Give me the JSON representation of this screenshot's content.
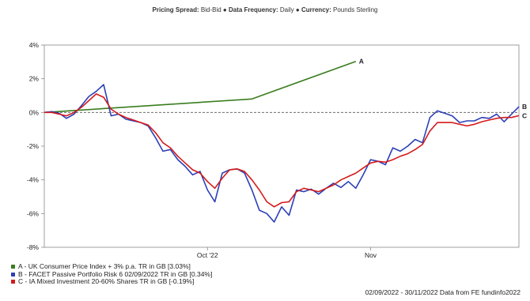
{
  "header": {
    "items": [
      {
        "label": "Pricing Spread:",
        "value": "Bid-Bid"
      },
      {
        "label": "Data Frequency:",
        "value": "Daily"
      },
      {
        "label": "Currency:",
        "value": "Pounds Sterling"
      }
    ]
  },
  "footer": "02/09/2022 - 30/11/2022 Data from FE fundinfo2022",
  "chart_data": {
    "type": "line",
    "ylim": [
      -8,
      4
    ],
    "yticks": [
      "4%",
      "2%",
      "0%",
      "-2%",
      "-4%",
      "-6%",
      "-8%"
    ],
    "xticks": [
      "Oct '22",
      "Nov"
    ],
    "reference_line": 0,
    "series": [
      {
        "key": "A",
        "name": "A - UK Consumer Price Index + 3% p.a. TR in GB [3.03%]",
        "color": "#3a7d1e",
        "points": [
          [
            0,
            0
          ],
          [
            28,
            0.8
          ],
          [
            42,
            3.03
          ]
        ]
      },
      {
        "key": "B",
        "name": "B - FACET Passive Portfolio Risk 6 02/09/2022 TR in GB [0.34%]",
        "color": "#2b3fb7",
        "points": [
          [
            0,
            0
          ],
          [
            1,
            0.05
          ],
          [
            2,
            -0.05
          ],
          [
            3,
            -0.35
          ],
          [
            4,
            -0.1
          ],
          [
            5,
            0.4
          ],
          [
            6,
            0.95
          ],
          [
            7,
            1.25
          ],
          [
            8,
            1.65
          ],
          [
            9,
            -0.2
          ],
          [
            10,
            -0.1
          ],
          [
            11,
            -0.4
          ],
          [
            12,
            -0.5
          ],
          [
            13,
            -0.6
          ],
          [
            14,
            -0.8
          ],
          [
            15,
            -1.5
          ],
          [
            16,
            -2.3
          ],
          [
            17,
            -2.2
          ],
          [
            18,
            -2.8
          ],
          [
            19,
            -3.2
          ],
          [
            20,
            -3.7
          ],
          [
            21,
            -3.5
          ],
          [
            22,
            -4.6
          ],
          [
            23,
            -5.3
          ],
          [
            24,
            -3.6
          ],
          [
            25,
            -3.4
          ],
          [
            26,
            -3.35
          ],
          [
            27,
            -3.6
          ],
          [
            28,
            -4.6
          ],
          [
            29,
            -5.8
          ],
          [
            30,
            -6.0
          ],
          [
            31,
            -6.5
          ],
          [
            32,
            -5.6
          ],
          [
            33,
            -6.1
          ],
          [
            34,
            -4.6
          ],
          [
            35,
            -4.7
          ],
          [
            36,
            -4.55
          ],
          [
            37,
            -4.85
          ],
          [
            38,
            -4.5
          ],
          [
            39,
            -4.2
          ],
          [
            40,
            -4.45
          ],
          [
            41,
            -4.1
          ],
          [
            42,
            -4.5
          ],
          [
            43,
            -3.7
          ],
          [
            44,
            -2.8
          ],
          [
            45,
            -2.9
          ],
          [
            46,
            -3.1
          ],
          [
            47,
            -2.1
          ],
          [
            48,
            -2.3
          ],
          [
            49,
            -2.0
          ],
          [
            50,
            -1.6
          ],
          [
            51,
            -1.8
          ],
          [
            52,
            -0.3
          ],
          [
            53,
            0.1
          ],
          [
            54,
            -0.05
          ],
          [
            55,
            -0.2
          ],
          [
            56,
            -0.6
          ],
          [
            57,
            -0.5
          ],
          [
            58,
            -0.5
          ],
          [
            59,
            -0.3
          ],
          [
            60,
            -0.35
          ],
          [
            61,
            -0.1
          ],
          [
            62,
            -0.55
          ],
          [
            63,
            -0.1
          ],
          [
            64,
            0.34
          ]
        ]
      },
      {
        "key": "C",
        "name": "C - IA Mixed Investment 20-60% Shares TR in GB [-0.19%]",
        "color": "#d41b1b",
        "points": [
          [
            0,
            0
          ],
          [
            1,
            0
          ],
          [
            2,
            -0.1
          ],
          [
            3,
            -0.2
          ],
          [
            4,
            0
          ],
          [
            5,
            0.3
          ],
          [
            6,
            0.7
          ],
          [
            7,
            1.1
          ],
          [
            8,
            0.9
          ],
          [
            9,
            0.2
          ],
          [
            10,
            -0.1
          ],
          [
            11,
            -0.3
          ],
          [
            12,
            -0.45
          ],
          [
            13,
            -0.6
          ],
          [
            14,
            -0.75
          ],
          [
            15,
            -1.2
          ],
          [
            16,
            -1.8
          ],
          [
            17,
            -2.1
          ],
          [
            18,
            -2.6
          ],
          [
            19,
            -3.0
          ],
          [
            20,
            -3.4
          ],
          [
            21,
            -3.6
          ],
          [
            22,
            -4.1
          ],
          [
            23,
            -4.5
          ],
          [
            24,
            -3.9
          ],
          [
            25,
            -3.4
          ],
          [
            26,
            -3.35
          ],
          [
            27,
            -3.5
          ],
          [
            28,
            -4.0
          ],
          [
            29,
            -4.6
          ],
          [
            30,
            -5.3
          ],
          [
            31,
            -5.6
          ],
          [
            32,
            -5.35
          ],
          [
            33,
            -5.3
          ],
          [
            34,
            -4.7
          ],
          [
            35,
            -4.5
          ],
          [
            36,
            -4.6
          ],
          [
            37,
            -4.7
          ],
          [
            38,
            -4.5
          ],
          [
            39,
            -4.3
          ],
          [
            40,
            -4.0
          ],
          [
            41,
            -3.8
          ],
          [
            42,
            -3.6
          ],
          [
            43,
            -3.3
          ],
          [
            44,
            -3.0
          ],
          [
            45,
            -2.9
          ],
          [
            46,
            -2.95
          ],
          [
            47,
            -2.8
          ],
          [
            48,
            -2.6
          ],
          [
            49,
            -2.45
          ],
          [
            50,
            -2.2
          ],
          [
            51,
            -1.9
          ],
          [
            52,
            -1.1
          ],
          [
            53,
            -0.6
          ],
          [
            54,
            -0.6
          ],
          [
            55,
            -0.6
          ],
          [
            56,
            -0.7
          ],
          [
            57,
            -0.8
          ],
          [
            58,
            -0.7
          ],
          [
            59,
            -0.55
          ],
          [
            60,
            -0.45
          ],
          [
            61,
            -0.35
          ],
          [
            62,
            -0.3
          ],
          [
            63,
            -0.3
          ],
          [
            64,
            -0.19
          ]
        ]
      }
    ]
  }
}
